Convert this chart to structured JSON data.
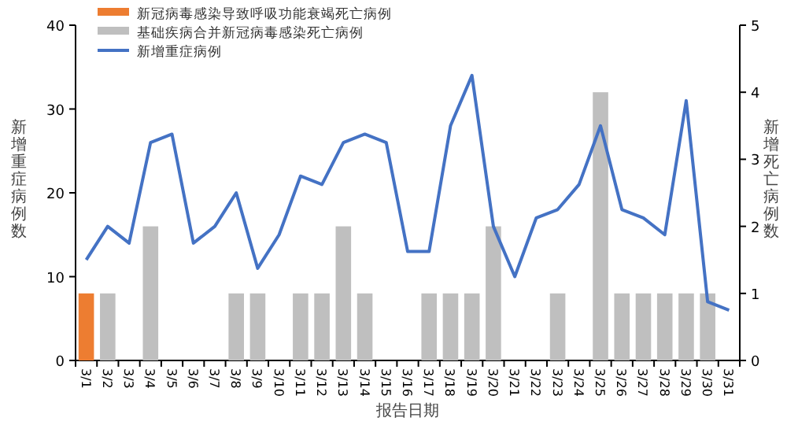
{
  "chart_data": {
    "type": "bar",
    "xlabel": "报告日期",
    "ylabel": "新增重症病例数",
    "y2label": "新增死亡病例数",
    "categories": [
      "3/1",
      "3/2",
      "3/3",
      "3/4",
      "3/5",
      "3/6",
      "3/7",
      "3/8",
      "3/9",
      "3/10",
      "3/11",
      "3/12",
      "3/13",
      "3/14",
      "3/15",
      "3/16",
      "3/17",
      "3/18",
      "3/19",
      "3/20",
      "3/21",
      "3/22",
      "3/23",
      "3/24",
      "3/25",
      "3/26",
      "3/27",
      "3/28",
      "3/29",
      "3/30",
      "3/31"
    ],
    "series": [
      {
        "name": "新冠病毒感染导致呼吸功能衰竭死亡病例",
        "axis": "y2",
        "color": "#ed7d31",
        "values": [
          1,
          null,
          null,
          null,
          null,
          null,
          null,
          null,
          null,
          null,
          null,
          null,
          null,
          null,
          null,
          null,
          null,
          null,
          null,
          null,
          null,
          null,
          null,
          null,
          null,
          null,
          null,
          null,
          null,
          null,
          null
        ]
      },
      {
        "name": "基础疾病合并新冠病毒感染死亡病例",
        "axis": "y2",
        "color": "#bfbfbf",
        "values": [
          null,
          1,
          null,
          2,
          null,
          null,
          null,
          1,
          1,
          null,
          1,
          1,
          2,
          1,
          null,
          null,
          1,
          1,
          1,
          2,
          null,
          null,
          1,
          null,
          4,
          1,
          1,
          1,
          1,
          1,
          null
        ]
      },
      {
        "name": "新增重症病例",
        "type": "line",
        "axis": "y",
        "color": "#4472c4",
        "values": [
          12,
          16,
          14,
          26,
          27,
          14,
          16,
          20,
          11,
          15,
          22,
          21,
          26,
          27,
          26,
          13,
          13,
          28,
          34,
          16,
          10,
          17,
          18,
          21,
          28,
          18,
          17,
          15,
          31,
          7,
          6
        ]
      }
    ],
    "ylim": [
      0,
      40
    ],
    "yticks": [
      0,
      10,
      20,
      30,
      40
    ],
    "y2lim": [
      0,
      5
    ],
    "y2ticks": [
      0,
      1,
      2,
      3,
      4,
      5
    ],
    "legend": "top",
    "grid": false
  }
}
